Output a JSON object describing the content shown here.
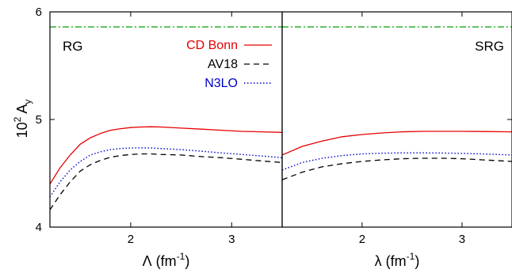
{
  "y_axis_title": {
    "base": "10",
    "exp": "2",
    "sym": "A",
    "sub": "y"
  },
  "chart_data": [
    {
      "type": "line",
      "panel_label": "RG",
      "xlabel": {
        "sym": "Λ",
        "unit": "(fm",
        "exp": "-1",
        "close": ")"
      },
      "xlim": [
        1.2,
        3.5
      ],
      "ylim": [
        4,
        6
      ],
      "xticks": [
        "2",
        "3"
      ],
      "xtick_values": [
        2,
        3
      ],
      "yticks": [
        "4",
        "5",
        "6"
      ],
      "ytick_values": [
        4,
        5,
        6
      ],
      "legend_position": "top-right",
      "series": [
        {
          "name": "CD Bonn",
          "color": "#e60000",
          "dash": "solid",
          "x": [
            1.2,
            1.3,
            1.4,
            1.5,
            1.6,
            1.7,
            1.8,
            1.9,
            2.0,
            2.1,
            2.2,
            2.3,
            2.5,
            2.7,
            2.9,
            3.1,
            3.3,
            3.5
          ],
          "y": [
            4.4,
            4.55,
            4.67,
            4.77,
            4.83,
            4.87,
            4.9,
            4.915,
            4.925,
            4.93,
            4.932,
            4.93,
            4.92,
            4.91,
            4.9,
            4.89,
            4.885,
            4.88
          ]
        },
        {
          "name": "AV18",
          "color": "#000000",
          "dash": "dashed",
          "x": [
            1.2,
            1.3,
            1.4,
            1.5,
            1.6,
            1.7,
            1.8,
            1.9,
            2.0,
            2.1,
            2.2,
            2.3,
            2.5,
            2.7,
            2.9,
            3.1,
            3.3,
            3.5
          ],
          "y": [
            4.16,
            4.3,
            4.42,
            4.52,
            4.58,
            4.62,
            4.65,
            4.665,
            4.675,
            4.68,
            4.68,
            4.675,
            4.67,
            4.655,
            4.645,
            4.63,
            4.615,
            4.6
          ]
        },
        {
          "name": "N3LO",
          "color": "#0000cc",
          "dash": "dotted",
          "x": [
            1.2,
            1.3,
            1.4,
            1.5,
            1.6,
            1.7,
            1.8,
            1.9,
            2.0,
            2.1,
            2.2,
            2.3,
            2.5,
            2.7,
            2.9,
            3.1,
            3.3,
            3.5
          ],
          "y": [
            4.28,
            4.42,
            4.53,
            4.61,
            4.67,
            4.7,
            4.72,
            4.73,
            4.735,
            4.737,
            4.735,
            4.73,
            4.72,
            4.705,
            4.69,
            4.675,
            4.66,
            4.645
          ]
        },
        {
          "name": "",
          "color": "#00a000",
          "dash": "dashdot",
          "x": [
            1.2,
            3.5
          ],
          "y": [
            5.86,
            5.86
          ]
        }
      ]
    },
    {
      "type": "line",
      "panel_label": "SRG",
      "xlabel": {
        "sym": "λ",
        "unit": "(fm",
        "exp": "-1",
        "close": ")"
      },
      "xlim": [
        1.2,
        3.5
      ],
      "ylim": [
        4,
        6
      ],
      "xticks": [
        "2",
        "3"
      ],
      "xtick_values": [
        2,
        3
      ],
      "yticks": [],
      "ytick_values": [
        4,
        5,
        6
      ],
      "series": [
        {
          "name": "CD Bonn",
          "color": "#e60000",
          "dash": "solid",
          "x": [
            1.2,
            1.4,
            1.6,
            1.8,
            2.0,
            2.2,
            2.4,
            2.6,
            2.8,
            3.0,
            3.2,
            3.5
          ],
          "y": [
            4.67,
            4.75,
            4.8,
            4.84,
            4.86,
            4.875,
            4.885,
            4.89,
            4.89,
            4.89,
            4.888,
            4.885
          ]
        },
        {
          "name": "AV18",
          "color": "#000000",
          "dash": "dashed",
          "x": [
            1.2,
            1.4,
            1.6,
            1.8,
            2.0,
            2.2,
            2.4,
            2.6,
            2.8,
            3.0,
            3.2,
            3.5
          ],
          "y": [
            4.44,
            4.51,
            4.56,
            4.59,
            4.61,
            4.625,
            4.635,
            4.64,
            4.64,
            4.635,
            4.625,
            4.61
          ]
        },
        {
          "name": "N3LO",
          "color": "#0000cc",
          "dash": "dotted",
          "x": [
            1.2,
            1.4,
            1.6,
            1.8,
            2.0,
            2.2,
            2.4,
            2.6,
            2.8,
            3.0,
            3.2,
            3.5
          ],
          "y": [
            4.53,
            4.6,
            4.64,
            4.665,
            4.68,
            4.687,
            4.69,
            4.69,
            4.688,
            4.685,
            4.68,
            4.67
          ]
        },
        {
          "name": "",
          "color": "#00a000",
          "dash": "dashdot",
          "x": [
            1.2,
            3.5
          ],
          "y": [
            5.86,
            5.86
          ]
        }
      ]
    }
  ]
}
